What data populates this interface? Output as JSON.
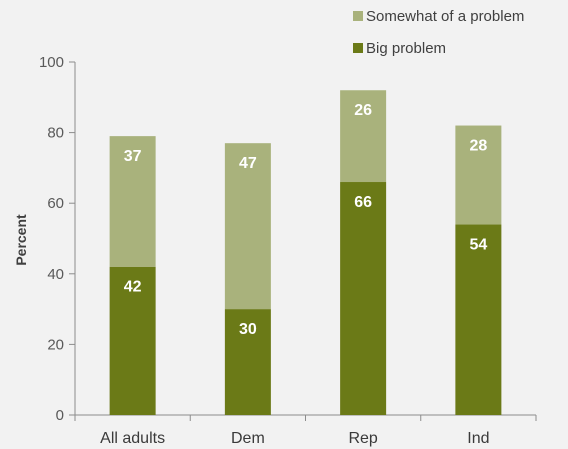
{
  "chart_data": {
    "type": "bar",
    "stacked": true,
    "categories": [
      "All adults",
      "Dem",
      "Rep",
      "Ind"
    ],
    "series": [
      {
        "name": "Big problem",
        "values": [
          42,
          30,
          66,
          54
        ],
        "color": "#6b7a17"
      },
      {
        "name": "Somewhat of a problem",
        "values": [
          37,
          47,
          26,
          28
        ],
        "color": "#a9b27c"
      }
    ],
    "ylabel": "Percent",
    "xlabel": "",
    "title": "",
    "ylim": [
      0,
      100
    ],
    "yticks": [
      0,
      20,
      40,
      60,
      80,
      100
    ],
    "grid": false,
    "legend_position": "top-right",
    "background": "#f2f2f2"
  }
}
